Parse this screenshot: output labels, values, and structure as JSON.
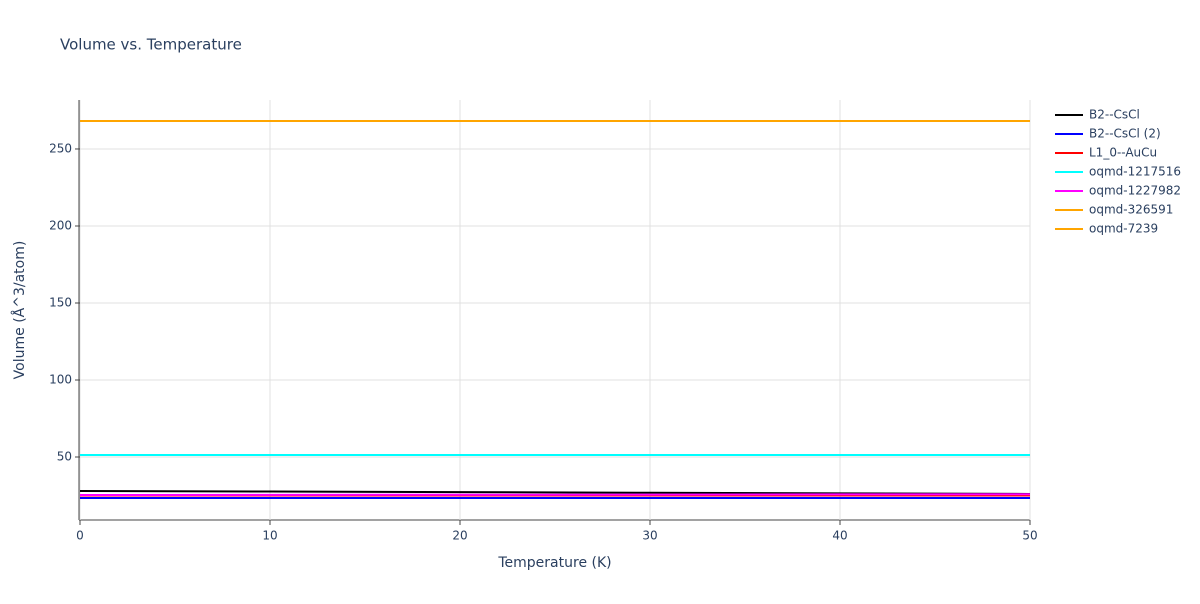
{
  "chart_data": {
    "type": "line",
    "title": "Volume vs. Temperature",
    "x_label": "Temperature (K)",
    "y_label": "Volume (Å^3/atom)",
    "x": [
      0,
      10,
      20,
      30,
      40,
      50
    ],
    "xlim": [
      0,
      50
    ],
    "xticks": [
      0,
      10,
      20,
      30,
      40,
      50
    ],
    "ylim": [
      9.1,
      281.8
    ],
    "yticks": [
      50,
      100,
      150,
      200,
      250
    ],
    "grid": true,
    "legend": "right",
    "series": [
      {
        "name": "B2--CsCl",
        "color": "#000000",
        "values": [
          27.9,
          27.6,
          27.2,
          26.8,
          26.4,
          26.0
        ]
      },
      {
        "name": "B2--CsCl (2)",
        "color": "#0000ff",
        "values": [
          23.4,
          23.4,
          23.4,
          23.4,
          23.4,
          23.4
        ]
      },
      {
        "name": "L1_0--AuCu",
        "color": "#ff0000",
        "values": [
          25.0,
          25.0,
          25.0,
          25.0,
          25.0,
          25.0
        ]
      },
      {
        "name": "oqmd-1217516",
        "color": "#00ffff",
        "values": [
          51.3,
          51.3,
          51.3,
          51.3,
          51.3,
          51.3
        ]
      },
      {
        "name": "oqmd-1227982",
        "color": "#ff00ff",
        "values": [
          25.3,
          25.4,
          25.5,
          25.6,
          25.7,
          25.8
        ]
      },
      {
        "name": "oqmd-326591",
        "color": "#ffa500",
        "values": [
          268.2,
          268.2,
          268.2,
          268.2,
          268.2,
          268.2
        ]
      },
      {
        "name": "oqmd-7239",
        "color": "#ffa500",
        "values": [
          268.2,
          268.2,
          268.2,
          268.2,
          268.2,
          268.2
        ]
      }
    ]
  }
}
